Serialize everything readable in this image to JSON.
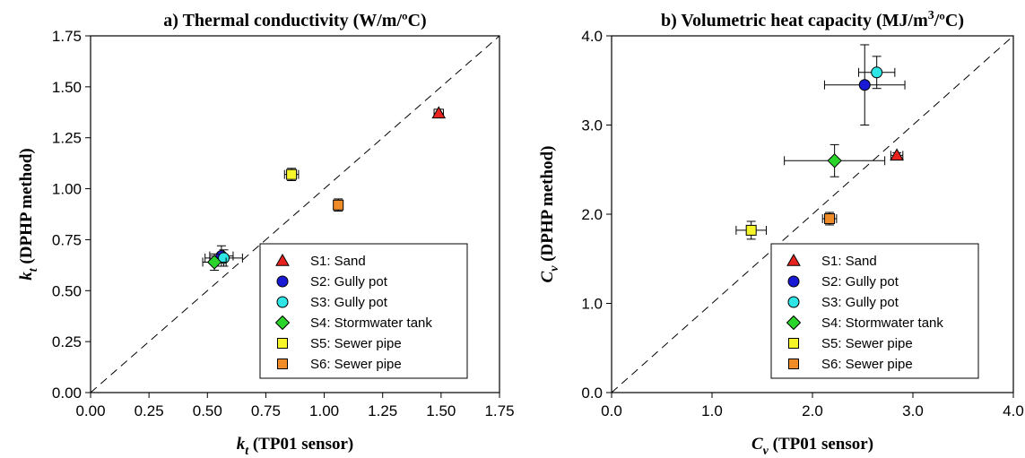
{
  "chart_data": [
    {
      "type": "scatter",
      "title": "a) Thermal conductivity (W/m/ºC)",
      "xlabel": {
        "symbol": "k",
        "subscript": "t",
        "text": " (TP01 sensor)"
      },
      "ylabel": {
        "symbol": "k",
        "subscript": "t",
        "text": " (DPHP method)"
      },
      "xlim": [
        0,
        1.75
      ],
      "ylim": [
        0,
        1.75
      ],
      "xticks": [
        "0.00",
        "0.25",
        "0.50",
        "0.75",
        "1.00",
        "1.25",
        "1.50",
        "1.75"
      ],
      "yticks": [
        "0.00",
        "0.25",
        "0.50",
        "0.75",
        "1.00",
        "1.25",
        "1.50",
        "1.75"
      ],
      "reference_line": "1:1 dashed",
      "legend_position": "bottom-right",
      "series": [
        {
          "name": "S1: Sand",
          "marker": "triangle",
          "color": "#e8231f",
          "x": 1.49,
          "y": 1.37,
          "xerr": 0.02,
          "yerr": 0.02
        },
        {
          "name": "S2: Gully pot",
          "marker": "circle",
          "color": "#1a1ad6",
          "x": 0.56,
          "y": 0.67,
          "xerr": 0.05,
          "yerr": 0.05
        },
        {
          "name": "S3: Gully pot",
          "marker": "circle",
          "color": "#2fe6e6",
          "x": 0.57,
          "y": 0.66,
          "xerr": 0.08,
          "yerr": 0.04
        },
        {
          "name": "S4: Stormwater tank",
          "marker": "diamond",
          "color": "#2bd42b",
          "x": 0.53,
          "y": 0.64,
          "xerr": 0.05,
          "yerr": 0.04
        },
        {
          "name": "S5: Sewer pipe",
          "marker": "square",
          "color": "#f5f52a",
          "x": 0.86,
          "y": 1.07,
          "xerr": 0.03,
          "yerr": 0.03
        },
        {
          "name": "S6: Sewer pipe",
          "marker": "square",
          "color": "#f08c28",
          "x": 1.06,
          "y": 0.92,
          "xerr": 0.02,
          "yerr": 0.03
        }
      ]
    },
    {
      "type": "scatter",
      "title": {
        "main": "b) Volumetric heat capacity (MJ/m",
        "superscript": "3",
        "end": "/ºC)"
      },
      "xlabel": {
        "symbol": "C",
        "subscript": "v",
        "text": " (TP01 sensor)"
      },
      "ylabel": {
        "symbol": "C",
        "subscript": "v",
        "text": " (DPHP method)"
      },
      "xlim": [
        0,
        4.0
      ],
      "ylim": [
        0,
        4.0
      ],
      "xticks": [
        "0.0",
        "1.0",
        "2.0",
        "3.0",
        "4.0"
      ],
      "yticks": [
        "0.0",
        "1.0",
        "2.0",
        "3.0",
        "4.0"
      ],
      "reference_line": "1:1 dashed",
      "legend_position": "bottom-right",
      "series": [
        {
          "name": "S1: Sand",
          "marker": "triangle",
          "color": "#e8231f",
          "x": 2.84,
          "y": 2.66,
          "xerr": 0.06,
          "yerr": 0.03
        },
        {
          "name": "S2: Gully pot",
          "marker": "circle",
          "color": "#1a1ad6",
          "x": 2.52,
          "y": 3.45,
          "xerr": 0.4,
          "yerr": 0.45
        },
        {
          "name": "S3: Gully pot",
          "marker": "circle",
          "color": "#2fe6e6",
          "x": 2.64,
          "y": 3.59,
          "xerr": 0.18,
          "yerr": 0.18
        },
        {
          "name": "S4: Stormwater tank",
          "marker": "diamond",
          "color": "#2bd42b",
          "x": 2.22,
          "y": 2.6,
          "xerr": 0.5,
          "yerr": 0.18
        },
        {
          "name": "S5: Sewer pipe",
          "marker": "square",
          "color": "#f5f52a",
          "x": 1.39,
          "y": 1.82,
          "xerr": 0.15,
          "yerr": 0.1
        },
        {
          "name": "S6: Sewer pipe",
          "marker": "square",
          "color": "#f08c28",
          "x": 2.17,
          "y": 1.95,
          "xerr": 0.07,
          "yerr": 0.07
        }
      ]
    }
  ]
}
